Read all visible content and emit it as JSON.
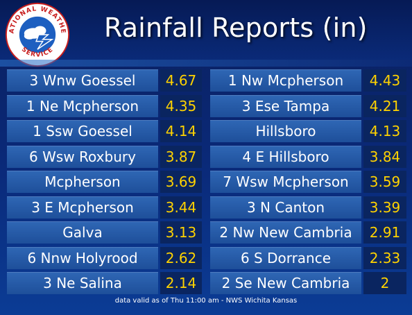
{
  "header": {
    "title": "Rainfall Reports (in)",
    "logo_text": "NATIONAL WEATHER SERVICE"
  },
  "colors": {
    "background": "#0a2a7a",
    "location_cell": "#2a5fae",
    "value_cell": "#0a2560",
    "value_text": "#ffd200",
    "location_text": "#ffffff"
  },
  "rows": [
    {
      "left_location": "3 Wnw Goessel",
      "left_value": "4.67",
      "right_location": "1 Nw Mcpherson",
      "right_value": "4.43"
    },
    {
      "left_location": "1 Ne Mcpherson",
      "left_value": "4.35",
      "right_location": "3 Ese Tampa",
      "right_value": "4.21"
    },
    {
      "left_location": "1 Ssw Goessel",
      "left_value": "4.14",
      "right_location": "Hillsboro",
      "right_value": "4.13"
    },
    {
      "left_location": "6 Wsw Roxbury",
      "left_value": "3.87",
      "right_location": "4 E Hillsboro",
      "right_value": "3.84"
    },
    {
      "left_location": "Mcpherson",
      "left_value": "3.69",
      "right_location": "7 Wsw Mcpherson",
      "right_value": "3.59"
    },
    {
      "left_location": "3 E Mcpherson",
      "left_value": "3.44",
      "right_location": "3 N Canton",
      "right_value": "3.39"
    },
    {
      "left_location": "Galva",
      "left_value": "3.13",
      "right_location": "2 Nw New Cambria",
      "right_value": "2.91"
    },
    {
      "left_location": "6 Nnw Holyrood",
      "left_value": "2.62",
      "right_location": "6 S Dorrance",
      "right_value": "2.33"
    },
    {
      "left_location": "3 Ne Salina",
      "left_value": "2.14",
      "right_location": "2 Se New Cambria",
      "right_value": "2"
    }
  ],
  "footer": {
    "text": "data valid as of Thu 11:00 am - NWS Wichita Kansas"
  }
}
